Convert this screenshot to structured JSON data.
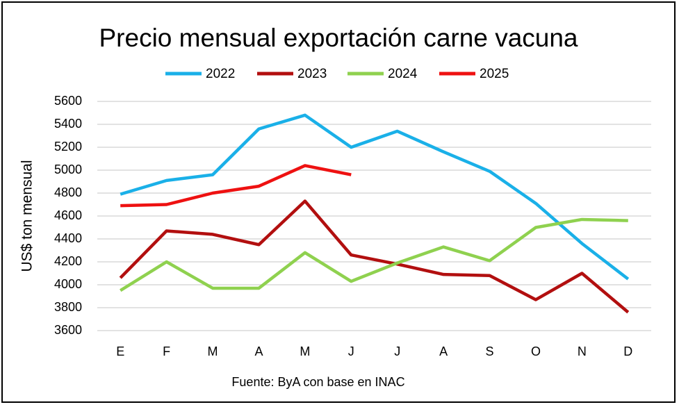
{
  "chart_data": {
    "type": "line",
    "title": "Precio mensual exportación carne vacuna",
    "y_label": "US$ ton mensual",
    "source": "Fuente: ByA con base en INAC",
    "categories": [
      "E",
      "F",
      "M",
      "A",
      "M",
      "J",
      "J",
      "A",
      "S",
      "O",
      "N",
      "D"
    ],
    "series": [
      {
        "name": "2022",
        "color": "#1ab0e8",
        "values": [
          4790,
          4910,
          4960,
          5360,
          5480,
          5200,
          5340,
          5160,
          4990,
          4710,
          4360,
          4050
        ]
      },
      {
        "name": "2023",
        "color": "#b20f0f",
        "values": [
          4060,
          4470,
          4440,
          4350,
          4730,
          4260,
          4180,
          4090,
          4080,
          3870,
          4100,
          3760
        ]
      },
      {
        "name": "2024",
        "color": "#8fd14f",
        "values": [
          3950,
          4200,
          3970,
          3970,
          4280,
          4030,
          4190,
          4330,
          4210,
          4500,
          4570,
          4560
        ]
      },
      {
        "name": "2025",
        "color": "#ee1111",
        "values": [
          4690,
          4700,
          4800,
          4860,
          5040,
          4960,
          null,
          null,
          null,
          null,
          null,
          null
        ]
      }
    ],
    "ylim": [
      3600,
      5600
    ],
    "yticks": [
      3600,
      3800,
      4000,
      4200,
      4400,
      4600,
      4800,
      5000,
      5200,
      5400,
      5600
    ],
    "grid": true,
    "legend": "top"
  }
}
